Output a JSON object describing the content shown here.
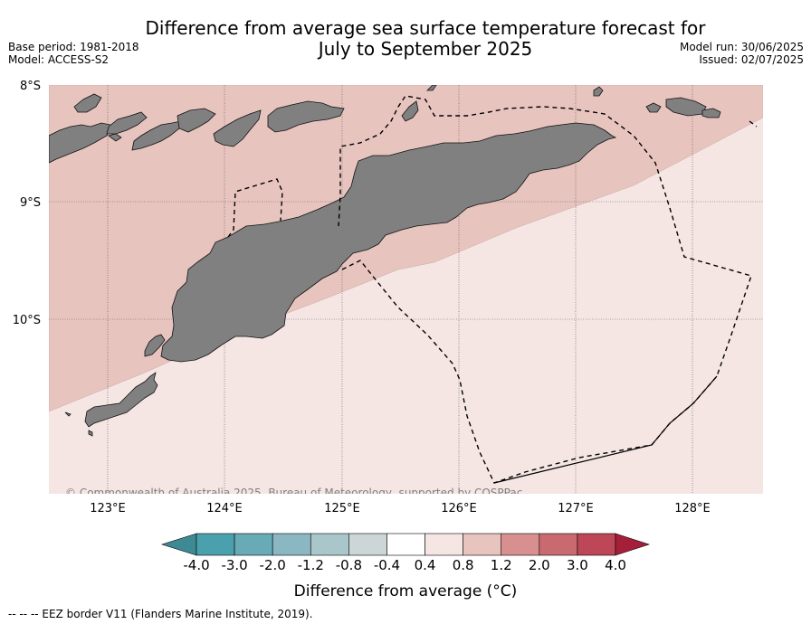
{
  "header": {
    "title_line1": "Difference from average sea surface temperature forecast for",
    "title_line2": "July to September 2025",
    "base_period": "Base period: 1981-2018",
    "model": "Model: ACCESS-S2",
    "model_run": "Model run: 30/06/2025",
    "issued": "Issued: 02/07/2025"
  },
  "map": {
    "lat_labels": [
      "8°S",
      "9°S",
      "10°S"
    ],
    "lon_labels": [
      "123°E",
      "124°E",
      "125°E",
      "126°E",
      "127°E",
      "128°E"
    ],
    "land_color": "#808080",
    "anomaly_warm_color": "#e8c4bf",
    "anomaly_mild_color": "#f5e6e4",
    "copyright": "© Commonwealth of Australia 2025, Bureau of Meteorology, supported by COSPPac"
  },
  "colorbar": {
    "labels": [
      "-4.0",
      "-3.0",
      "-2.0",
      "-1.2",
      "-0.8",
      "-0.4",
      "0.4",
      "0.8",
      "1.2",
      "2.0",
      "3.0",
      "4.0"
    ],
    "colors": [
      "#3e8a94",
      "#4aa1ad",
      "#68aab6",
      "#8bb7c2",
      "#a9c7cb",
      "#cdd6d7",
      "#ffffff",
      "#f5e6e4",
      "#e8c4bf",
      "#d7908f",
      "#c96a71",
      "#bd4657",
      "#a51f3a"
    ],
    "title": "Difference from average (°C)"
  },
  "footnote": "--  --  -- EEZ border V11 (Flanders Marine Institute, 2019)."
}
